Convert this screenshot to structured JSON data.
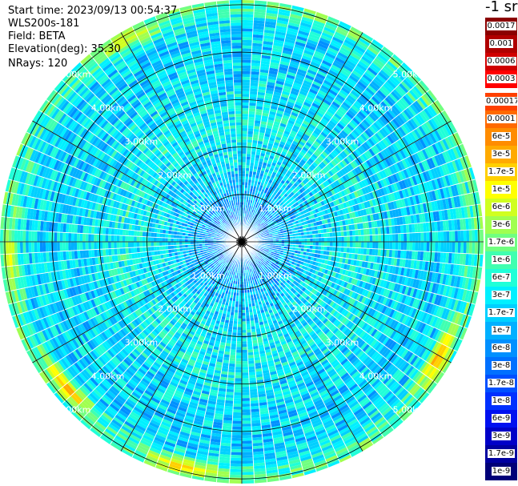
{
  "header": {
    "start_time": "Start time: 2023/09/13 00:54:37",
    "instrument": "WLS200s-181",
    "field": "Field: BETA",
    "elevation": "Elevation(deg): 35.30",
    "nrays": "NRays: 120"
  },
  "colorbar": {
    "units_label": "-1 sr",
    "levels": [
      {
        "label": "0.0017",
        "color": "#8b0000"
      },
      {
        "label": "0.001",
        "color": "#b00000"
      },
      {
        "label": "0.0006",
        "color": "#d00000"
      },
      {
        "label": "0.0003",
        "color": "#ff0000"
      },
      {
        "label": "0.00017",
        "color": "#ff4000"
      },
      {
        "label": "0.0001",
        "color": "#ff6a00"
      },
      {
        "label": "6e-5",
        "color": "#ff8c00"
      },
      {
        "label": "3e-5",
        "color": "#ffaa00"
      },
      {
        "label": "1.7e-5",
        "color": "#ffd000"
      },
      {
        "label": "1e-5",
        "color": "#ffff00"
      },
      {
        "label": "6e-6",
        "color": "#d0ff20"
      },
      {
        "label": "3e-6",
        "color": "#a0ff50"
      },
      {
        "label": "1.7e-6",
        "color": "#70ff80"
      },
      {
        "label": "1e-6",
        "color": "#40ffb0"
      },
      {
        "label": "6e-7",
        "color": "#20ffd8"
      },
      {
        "label": "3e-7",
        "color": "#00f0ff"
      },
      {
        "label": "1.7e-7",
        "color": "#00d0ff"
      },
      {
        "label": "1e-7",
        "color": "#00b0ff"
      },
      {
        "label": "6e-8",
        "color": "#0090ff"
      },
      {
        "label": "3e-8",
        "color": "#0070ff"
      },
      {
        "label": "1.7e-8",
        "color": "#0050ff"
      },
      {
        "label": "1e-8",
        "color": "#0030ff"
      },
      {
        "label": "6e-9",
        "color": "#0010f0"
      },
      {
        "label": "3e-9",
        "color": "#0000c8"
      },
      {
        "label": "1.7e-9",
        "color": "#0000a0"
      },
      {
        "label": "1e-9",
        "color": "#000078"
      }
    ]
  },
  "chart_data": {
    "type": "heatmap",
    "projection": "polar",
    "title": "",
    "range_rings_km": [
      1,
      2,
      3,
      4,
      5
    ],
    "range_ring_labels": [
      "1.00km",
      "2.00km",
      "3.00km",
      "4.00km",
      "5.00km"
    ],
    "max_range_km": 5.1,
    "azimuth_spokes_deg": [
      0,
      30,
      60,
      90,
      120,
      150,
      180,
      210,
      240,
      270,
      300,
      330
    ],
    "n_rays": 120,
    "field": "BETA",
    "elevation_deg": 35.3,
    "value_profile_by_range_km": [
      {
        "range_km": 0.5,
        "beta_sr-1_m-1": 6e-08
      },
      {
        "range_km": 1.5,
        "beta_sr-1_m-1": 2e-07
      },
      {
        "range_km": 2.5,
        "beta_sr-1_m-1": 4e-07
      },
      {
        "range_km": 3.5,
        "beta_sr-1_m-1": 2e-07
      },
      {
        "range_km": 4.5,
        "beta_sr-1_m-1": 2e-07
      },
      {
        "range_km": 5.0,
        "beta_sr-1_m-1": 1e-06
      }
    ],
    "notable_features": [
      {
        "azimuth_deg": 120,
        "range_km": 4.8,
        "beta_sr-1_m-1": 6e-05
      },
      {
        "azimuth_deg": 230,
        "range_km": 4.8,
        "beta_sr-1_m-1": 6e-05
      },
      {
        "azimuth_deg": 195,
        "range_km": 4.9,
        "beta_sr-1_m-1": 3e-05
      },
      {
        "azimuth_deg": 330,
        "range_km": 4.9,
        "beta_sr-1_m-1": 1e-05
      },
      {
        "azimuth_deg": 265,
        "range_km": 4.9,
        "beta_sr-1_m-1": 1e-05
      }
    ]
  }
}
